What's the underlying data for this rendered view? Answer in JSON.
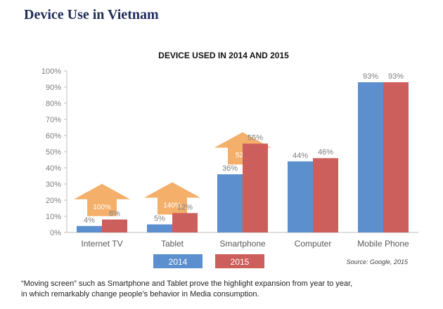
{
  "page": {
    "title": "Device Use in Vietnam",
    "footnote_line1": "“Moving screen” such as Smartphone and Tablet prove the highlight expansion from year to year,",
    "footnote_line2": "in which remarkably change people’s behavior in Media consumption."
  },
  "chart_data": {
    "type": "bar",
    "title": "DEVICE USED IN 2014 AND 2015",
    "xlabel": "",
    "ylabel": "",
    "categories": [
      "Internet TV",
      "Tablet",
      "Smartphone",
      "Computer",
      "Mobile Phone"
    ],
    "series": [
      {
        "name": "2014",
        "values": [
          4,
          5,
          36,
          44,
          93
        ],
        "color": "#5b8fce"
      },
      {
        "name": "2015",
        "values": [
          8,
          12,
          55,
          46,
          93
        ],
        "color": "#cc5f5c"
      }
    ],
    "data_labels": {
      "2014": [
        "4%",
        "5%",
        "36%",
        "44%",
        "93%"
      ],
      "2015": [
        "8%",
        "12%",
        "55%",
        "46%",
        "93%"
      ]
    },
    "growth_arrows": [
      {
        "category": "Internet TV",
        "label": "100%"
      },
      {
        "category": "Tablet",
        "label": "140%"
      },
      {
        "category": "Smartphone",
        "label": "52%"
      }
    ],
    "y_ticks": [
      "0%",
      "10%",
      "20%",
      "30%",
      "40%",
      "50%",
      "60%",
      "70%",
      "80%",
      "90%",
      "100%"
    ],
    "ylim": [
      0,
      100
    ],
    "grid": false,
    "legend_position": "bottom",
    "source": "Source: Google, 2015",
    "colors": {
      "arrow": "#f4b06b",
      "arrow_text": "#ffffff",
      "axis_text": "#7f7f7f"
    }
  }
}
